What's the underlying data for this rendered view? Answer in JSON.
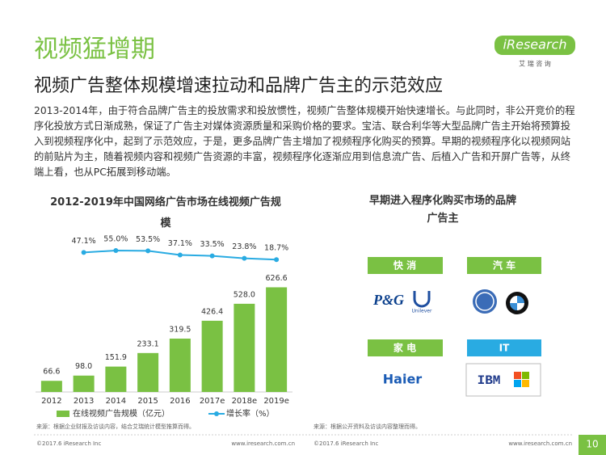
{
  "header": {
    "title": "视频猛增期",
    "subtitle": "视频广告整体规模增速拉动和品牌广告主的示范效应",
    "logo": "iResearch",
    "logo_sub": "艾 瑞 咨 询"
  },
  "body": "2013-2014年，由于符合品牌广告主的投放需求和投放惯性，视频广告整体规模开始快速增长。与此同时，非公开竞价的程序化投放方式日渐成熟，保证了广告主对媒体资源质量和采购价格的要求。宝洁、联合利华等大型品牌广告主开始将预算投入到视频程序化中，起到了示范效应，于是，更多品牌广告主增加了视频程序化购买的预算。早期的视频程序化以视频网站的前贴片为主，随着视频内容和视频广告资源的丰富，视频程序化逐渐应用到信息流广告、后植入广告和开屏广告等，从终端上看，也从PC拓展到移动端。",
  "chart_data": {
    "type": "bar",
    "title": "2012-2019年中国网络广告市场在线视频广告规模",
    "categories": [
      "2012",
      "2013",
      "2014",
      "2015",
      "2016",
      "2017e",
      "2018e",
      "2019e"
    ],
    "series": [
      {
        "name": "在线视频广告规模（亿元）",
        "type": "bar",
        "color": "#7ac143",
        "values": [
          66.6,
          98.0,
          151.9,
          233.1,
          319.5,
          426.4,
          528.0,
          626.6
        ],
        "value_labels": [
          "66.6",
          "98.0",
          "151.9",
          "233.1",
          "319.5",
          "426.4",
          "528.0",
          "626.6"
        ]
      },
      {
        "name": "增长率（%）",
        "type": "line",
        "axis": "y2",
        "color": "#29abe2",
        "values": [
          null,
          47.1,
          55.0,
          53.5,
          37.1,
          33.5,
          23.8,
          18.7
        ],
        "value_labels": [
          null,
          "47.1%",
          "55.0%",
          "53.5%",
          "37.1%",
          "33.5%",
          "23.8%",
          "18.7%"
        ]
      }
    ],
    "ylim": [
      0,
      750
    ],
    "y2lim": [
      0,
      100
    ],
    "legend": "bottom",
    "source": "来源：根据企业财报及访谈内容，结合艾瑞统计模型推算而得。"
  },
  "brands": {
    "title": "早期进入程序化购买市场的品牌广告主",
    "groups": [
      {
        "label": "快 消",
        "logos": [
          "P&G",
          "Unilever"
        ]
      },
      {
        "label": "汽 车"
      },
      {
        "label": "家 电",
        "logos": [
          "Haier"
        ]
      },
      {
        "label": "IT",
        "logos": [
          "IBM"
        ]
      }
    ],
    "source": "来源：根据公开资料及访谈内容整理而得。"
  },
  "footer": {
    "left_copyright": "©2017.6 iResearch Inc",
    "left_url": "www.iresearch.com.cn",
    "right_copyright": "©2017.6 iResearch Inc",
    "right_url": "www.iresearch.com.cn",
    "page": "10"
  }
}
